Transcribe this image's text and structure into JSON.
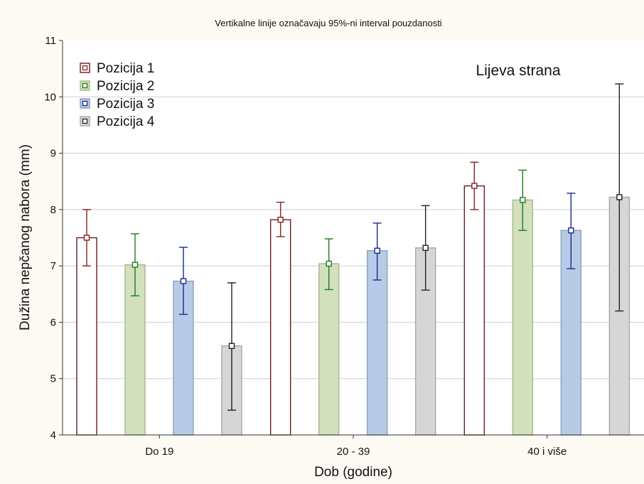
{
  "chart_data": {
    "type": "bar",
    "title": "Vertikalne linije označavaju 95%-ni interval pouzdanosti",
    "annotation": "Lijeva strana",
    "xlabel": "Dob (godine)",
    "ylabel": "Dužina nepčanog nabora (mm)",
    "ylim": [
      4,
      11
    ],
    "yticks": [
      "4",
      "5",
      "6",
      "7",
      "8",
      "9",
      "10",
      "11"
    ],
    "grid": true,
    "legend_position": "top-left",
    "categories": [
      "Do 19",
      "20 - 39",
      "40 i više"
    ],
    "series": [
      {
        "name": "Pozicija 1",
        "fill": "#ffffff",
        "edge": "#6b1c1c",
        "marker": "#8b2020",
        "values": [
          7.5,
          7.82,
          8.42
        ],
        "ci_low": [
          7.0,
          7.52,
          8.0
        ],
        "ci_high": [
          8.0,
          8.13,
          8.84
        ]
      },
      {
        "name": "Pozicija 2",
        "fill": "#d2e0bc",
        "edge": "#a6b88c",
        "marker": "#1e7a1e",
        "values": [
          7.02,
          7.04,
          8.17
        ],
        "ci_low": [
          6.47,
          6.58,
          7.63
        ],
        "ci_high": [
          7.57,
          7.48,
          8.7
        ]
      },
      {
        "name": "Pozicija 3",
        "fill": "#b7cbe6",
        "edge": "#8aa0c0",
        "marker": "#1a2a8a",
        "values": [
          6.73,
          7.27,
          7.63
        ],
        "ci_low": [
          6.14,
          6.75,
          6.95
        ],
        "ci_high": [
          7.33,
          7.76,
          8.29
        ]
      },
      {
        "name": "Pozicija 4",
        "fill": "#d6d6d6",
        "edge": "#a8a8a8",
        "marker": "#222222",
        "values": [
          5.58,
          7.32,
          8.22
        ],
        "ci_low": [
          4.44,
          6.57,
          6.2
        ],
        "ci_high": [
          6.7,
          8.07,
          10.23
        ]
      }
    ]
  }
}
